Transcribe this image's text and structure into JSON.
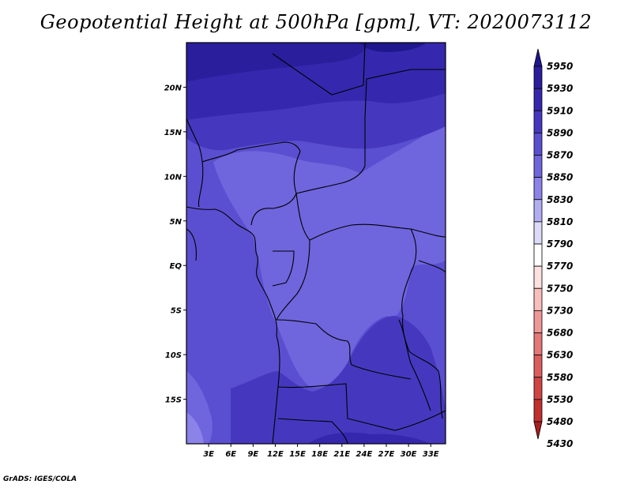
{
  "title": "Geopotential Height at 500hPa [gpm], VT: 2020073112",
  "footer": "GrADS: IGES/COLA",
  "map": {
    "lon_range": [
      0,
      35
    ],
    "lat_range": [
      -20,
      25
    ],
    "y_ticks": [
      {
        "lat": 20,
        "label": "20N"
      },
      {
        "lat": 15,
        "label": "15N"
      },
      {
        "lat": 10,
        "label": "10N"
      },
      {
        "lat": 5,
        "label": "5N"
      },
      {
        "lat": 0,
        "label": "EQ"
      },
      {
        "lat": -5,
        "label": "5S"
      },
      {
        "lat": -10,
        "label": "10S"
      },
      {
        "lat": -15,
        "label": "15S"
      }
    ],
    "x_ticks": [
      {
        "lon": 3,
        "label": "3E"
      },
      {
        "lon": 6,
        "label": "6E"
      },
      {
        "lon": 9,
        "label": "9E"
      },
      {
        "lon": 12,
        "label": "12E"
      },
      {
        "lon": 15,
        "label": "15E"
      },
      {
        "lon": 18,
        "label": "18E"
      },
      {
        "lon": 21,
        "label": "21E"
      },
      {
        "lon": 24,
        "label": "24E"
      },
      {
        "lon": 27,
        "label": "27E"
      },
      {
        "lon": 30,
        "label": "30E"
      },
      {
        "lon": 33,
        "label": "33E"
      }
    ]
  },
  "colorbar": {
    "levels": [
      {
        "label": "5950",
        "color": "#1f178c"
      },
      {
        "label": "5930",
        "color": "#2a1e9c"
      },
      {
        "label": "5910",
        "color": "#3528ae"
      },
      {
        "label": "5890",
        "color": "#4538be"
      },
      {
        "label": "5870",
        "color": "#5a4fd0"
      },
      {
        "label": "5850",
        "color": "#6f65dd"
      },
      {
        "label": "5830",
        "color": "#8c83e8"
      },
      {
        "label": "5810",
        "color": "#b2adf2"
      },
      {
        "label": "5790",
        "color": "#dcdaf9"
      },
      {
        "label": "5770",
        "color": "#ffffff"
      },
      {
        "label": "5750",
        "color": "#fde0e0"
      },
      {
        "label": "5730",
        "color": "#f8bdbd"
      },
      {
        "label": "5680",
        "color": "#ef9797"
      },
      {
        "label": "5630",
        "color": "#e47777"
      },
      {
        "label": "5580",
        "color": "#dc5d5d"
      },
      {
        "label": "5530",
        "color": "#d04444"
      },
      {
        "label": "5480",
        "color": "#c02e2e"
      },
      {
        "label": "5430",
        "color": "#a81e1e"
      }
    ]
  }
}
